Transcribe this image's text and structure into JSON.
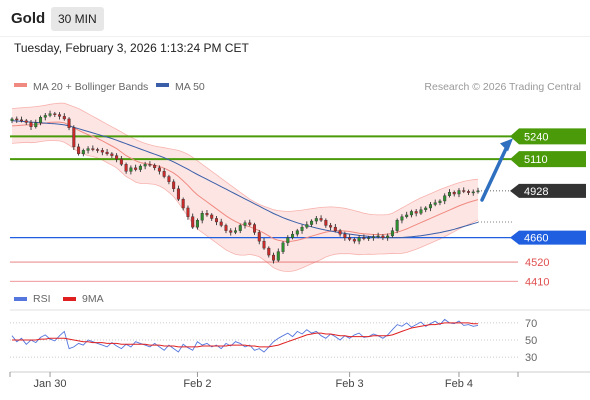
{
  "header": {
    "instrument": "Gold",
    "timeframe": "30 MIN"
  },
  "timestamp": "Tuesday, February 3, 2026 1:13:24 PM CET",
  "legend": {
    "ma20_label": "MA 20 + Bollinger Bands",
    "ma50_label": "MA 50",
    "credit": "Research © 2026 Trading Central",
    "ma20_color": "#f08a80",
    "ma50_color": "#3a5fa8"
  },
  "rsi_legend": {
    "rsi_label": "RSI",
    "ma_label": "9MA",
    "rsi_color": "#5577dd",
    "ma_color": "#e02020"
  },
  "chart_data": [
    {
      "type": "candlestick",
      "ylim": [
        4360,
        5460
      ],
      "x_ticks": [
        "Jan 30",
        "Feb 2",
        "Feb 3",
        "Feb 4"
      ],
      "last_price": 4928,
      "levels": [
        {
          "label": "5240",
          "value": 5240,
          "kind": "resistance",
          "color": "#4a9a0a"
        },
        {
          "label": "5110",
          "value": 5110,
          "kind": "resistance",
          "color": "#4a9a0a"
        },
        {
          "label": "4928",
          "value": 4928,
          "kind": "last",
          "color": "#333333"
        },
        {
          "label": "4660",
          "value": 4660,
          "kind": "pivot",
          "color": "#1f5fe0"
        },
        {
          "label": "4520",
          "value": 4520,
          "kind": "support",
          "color": "#e05050"
        },
        {
          "label": "4410",
          "value": 4410,
          "kind": "support",
          "color": "#e05050"
        }
      ],
      "close": [
        5340,
        5335,
        5330,
        5320,
        5295,
        5318,
        5350,
        5360,
        5370,
        5365,
        5355,
        5340,
        5290,
        5180,
        5140,
        5160,
        5170,
        5165,
        5160,
        5150,
        5140,
        5130,
        5110,
        5080,
        5040,
        5060,
        5050,
        5070,
        5080,
        5075,
        5060,
        5040,
        5010,
        4980,
        4940,
        4880,
        4830,
        4780,
        4720,
        4760,
        4800,
        4790,
        4770,
        4750,
        4730,
        4700,
        4690,
        4700,
        4730,
        4745,
        4735,
        4690,
        4640,
        4600,
        4560,
        4530,
        4580,
        4630,
        4660,
        4680,
        4700,
        4720,
        4735,
        4755,
        4770,
        4760,
        4730,
        4720,
        4700,
        4680,
        4660,
        4650,
        4640,
        4660,
        4655,
        4660,
        4665,
        4670,
        4660,
        4670,
        4700,
        4760,
        4780,
        4790,
        4810,
        4800,
        4820,
        4830,
        4850,
        4860,
        4870,
        4900,
        4920,
        4910,
        4930,
        4925,
        4918,
        4922,
        4928
      ],
      "ma20": [
        5300,
        5302,
        5304,
        5306,
        5306,
        5308,
        5312,
        5316,
        5320,
        5322,
        5322,
        5318,
        5305,
        5290,
        5275,
        5262,
        5250,
        5240,
        5228,
        5215,
        5200,
        5185,
        5170,
        5150,
        5130,
        5115,
        5100,
        5090,
        5085,
        5080,
        5075,
        5068,
        5058,
        5045,
        5030,
        5010,
        4985,
        4960,
        4930,
        4905,
        4885,
        4865,
        4845,
        4825,
        4805,
        4785,
        4768,
        4752,
        4740,
        4730,
        4722,
        4712,
        4700,
        4686,
        4670,
        4654,
        4645,
        4640,
        4638,
        4640,
        4645,
        4652,
        4660,
        4668,
        4676,
        4684,
        4692,
        4697,
        4700,
        4700,
        4698,
        4695,
        4690,
        4685,
        4682,
        4680,
        4678,
        4678,
        4678,
        4680,
        4685,
        4692,
        4700,
        4710,
        4722,
        4734,
        4746,
        4758,
        4770,
        4782,
        4794,
        4806,
        4818,
        4830,
        4842,
        4852,
        4862,
        4870,
        4878
      ],
      "ma50": [
        5330,
        5328,
        5326,
        5324,
        5322,
        5320,
        5318,
        5316,
        5314,
        5312,
        5310,
        5306,
        5300,
        5292,
        5284,
        5276,
        5268,
        5260,
        5252,
        5244,
        5236,
        5228,
        5218,
        5208,
        5198,
        5188,
        5178,
        5168,
        5158,
        5148,
        5138,
        5128,
        5118,
        5106,
        5094,
        5080,
        5066,
        5052,
        5036,
        5022,
        5008,
        4994,
        4980,
        4966,
        4952,
        4938,
        4924,
        4910,
        4896,
        4882,
        4868,
        4854,
        4840,
        4826,
        4812,
        4798,
        4786,
        4774,
        4764,
        4754,
        4745,
        4737,
        4729,
        4722,
        4715,
        4709,
        4703,
        4698,
        4693,
        4688,
        4684,
        4680,
        4676,
        4673,
        4670,
        4667,
        4665,
        4663,
        4661,
        4660,
        4660,
        4660,
        4661,
        4663,
        4665,
        4668,
        4671,
        4675,
        4679,
        4684,
        4689,
        4695,
        4701,
        4708,
        4716,
        4724,
        4732,
        4740,
        4748
      ],
      "bb_upper": [
        5400,
        5402,
        5404,
        5406,
        5408,
        5410,
        5414,
        5418,
        5424,
        5428,
        5430,
        5430,
        5420,
        5410,
        5400,
        5385,
        5370,
        5355,
        5340,
        5325,
        5310,
        5295,
        5280,
        5265,
        5250,
        5235,
        5222,
        5210,
        5200,
        5192,
        5185,
        5180,
        5175,
        5170,
        5165,
        5160,
        5150,
        5138,
        5120,
        5100,
        5080,
        5060,
        5040,
        5020,
        5000,
        4980,
        4960,
        4940,
        4920,
        4900,
        4880,
        4865,
        4850,
        4840,
        4830,
        4820,
        4815,
        4812,
        4810,
        4812,
        4815,
        4818,
        4822,
        4826,
        4830,
        4833,
        4835,
        4836,
        4835,
        4832,
        4828,
        4822,
        4815,
        4808,
        4800,
        4795,
        4792,
        4790,
        4790,
        4792,
        4800,
        4815,
        4830,
        4845,
        4860,
        4875,
        4888,
        4900,
        4912,
        4924,
        4936,
        4946,
        4956,
        4966,
        4974,
        4982,
        4988,
        4992,
        4995
      ],
      "bb_lower": [
        5200,
        5202,
        5204,
        5206,
        5204,
        5206,
        5210,
        5214,
        5216,
        5216,
        5214,
        5206,
        5190,
        5170,
        5150,
        5139,
        5130,
        5125,
        5116,
        5105,
        5090,
        5075,
        5060,
        5035,
        5010,
        4995,
        4978,
        4970,
        4970,
        4968,
        4965,
        4956,
        4941,
        4920,
        4895,
        4860,
        4820,
        4782,
        4740,
        4710,
        4690,
        4670,
        4650,
        4630,
        4610,
        4590,
        4576,
        4564,
        4560,
        4560,
        4564,
        4559,
        4550,
        4532,
        4510,
        4488,
        4475,
        4468,
        4466,
        4468,
        4475,
        4486,
        4498,
        4510,
        4522,
        4535,
        4549,
        4558,
        4565,
        4568,
        4568,
        4568,
        4565,
        4562,
        4564,
        4565,
        4564,
        4566,
        4566,
        4568,
        4570,
        4569,
        4570,
        4575,
        4584,
        4593,
        4604,
        4616,
        4628,
        4640,
        4652,
        4666,
        4680,
        4694,
        4710,
        4722,
        4736,
        4748,
        4761
      ]
    },
    {
      "type": "line",
      "title": "RSI",
      "ylim": [
        15,
        85
      ],
      "y_ticks": [
        70,
        50,
        30
      ],
      "series": [
        {
          "name": "RSI",
          "values": [
            55,
            48,
            52,
            45,
            50,
            47,
            53,
            56,
            51,
            49,
            55,
            60,
            40,
            42,
            46,
            44,
            50,
            48,
            46,
            44,
            42,
            47,
            43,
            40,
            45,
            42,
            48,
            46,
            44,
            42,
            46,
            42,
            38,
            44,
            40,
            36,
            45,
            41,
            38,
            48,
            44,
            46,
            42,
            44,
            40,
            46,
            43,
            48,
            46,
            42,
            44,
            38,
            40,
            36,
            42,
            48,
            52,
            55,
            58,
            54,
            60,
            57,
            62,
            58,
            60,
            55,
            52,
            57,
            54,
            50,
            55,
            52,
            56,
            58,
            53,
            54,
            57,
            55,
            52,
            56,
            62,
            68,
            66,
            70,
            65,
            68,
            71,
            66,
            69,
            72,
            68,
            74,
            70,
            69,
            72,
            67,
            68,
            66,
            67
          ]
        },
        {
          "name": "9MA",
          "values": [
            50,
            50,
            50,
            50,
            50,
            50,
            51,
            51,
            52,
            52,
            52,
            52,
            51,
            50,
            49,
            48,
            48,
            47,
            47,
            47,
            46,
            46,
            46,
            45,
            45,
            45,
            45,
            45,
            45,
            44,
            44,
            44,
            43,
            43,
            43,
            42,
            42,
            42,
            42,
            42,
            43,
            43,
            43,
            43,
            43,
            43,
            44,
            44,
            44,
            44,
            43,
            43,
            42,
            42,
            42,
            43,
            44,
            46,
            48,
            50,
            52,
            54,
            56,
            57,
            58,
            58,
            57,
            57,
            56,
            55,
            55,
            54,
            54,
            54,
            54,
            54,
            55,
            55,
            55,
            55,
            56,
            58,
            60,
            62,
            64,
            65,
            66,
            67,
            68,
            68,
            69,
            70,
            70,
            70,
            70,
            70,
            70,
            69,
            69
          ]
        }
      ]
    }
  ]
}
